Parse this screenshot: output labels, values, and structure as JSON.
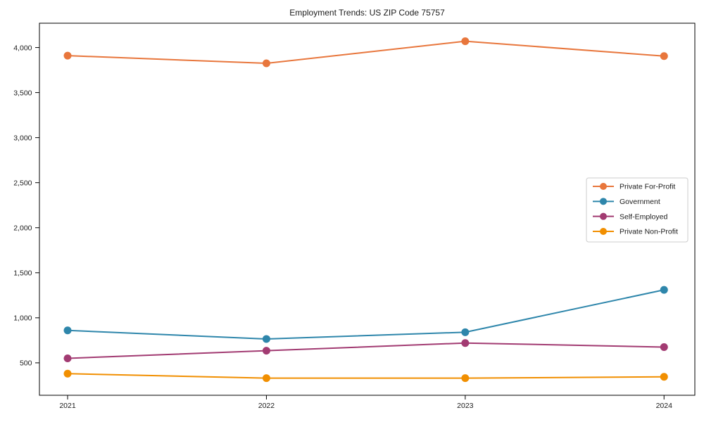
{
  "figure": {
    "title": "Employment Trends: US ZIP Code 75757",
    "background_color": "#ffffff",
    "spine_color": "#000000",
    "text_color": "#1a1a1a",
    "legend_border_color": "#cccccc"
  },
  "chart_data": {
    "type": "line",
    "title": "Employment Trends: US ZIP Code 75757",
    "xlabel": "",
    "ylabel": "",
    "categories": [
      "2021",
      "2022",
      "2023",
      "2024"
    ],
    "series": [
      {
        "name": "Private For-Profit",
        "color": "#E8763C",
        "values": [
          3910,
          3825,
          4070,
          3905
        ]
      },
      {
        "name": "Government",
        "color": "#2E86AB",
        "values": [
          860,
          765,
          840,
          1310
        ]
      },
      {
        "name": "Self-Employed",
        "color": "#A23B72",
        "values": [
          550,
          635,
          720,
          675
        ]
      },
      {
        "name": "Private Non-Profit",
        "color": "#F18F01",
        "values": [
          380,
          330,
          330,
          345
        ]
      }
    ],
    "ylim": [
      140,
      4270
    ],
    "yticks": [
      500,
      1000,
      1500,
      2000,
      2500,
      3000,
      3500,
      4000
    ],
    "ytick_labels": [
      "500",
      "1,000",
      "1,500",
      "2,000",
      "2,500",
      "3,000",
      "3,500",
      "4,000"
    ],
    "grid": false,
    "legend_position": "right-center",
    "marker": "circle",
    "line_width": 2,
    "marker_radius": 5.5
  }
}
